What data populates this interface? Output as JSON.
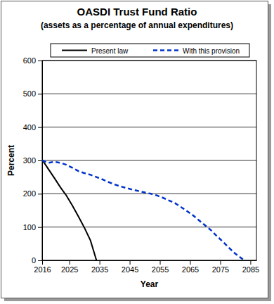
{
  "chart_data": {
    "type": "line",
    "title": "OASDI Trust Fund Ratio",
    "subtitle": "(assets as a percentage of annual expenditures)",
    "x_label": "Year",
    "y_label": "Percent",
    "legend": "top",
    "grid": true,
    "xlim": [
      2016,
      2087
    ],
    "xticks": [
      2016,
      2025,
      2035,
      2045,
      2055,
      2065,
      2075,
      2085
    ],
    "ylim": [
      0,
      600
    ],
    "yticks": [
      0,
      100,
      200,
      300,
      400,
      500,
      600
    ],
    "series": [
      {
        "name": "Present law",
        "color": "#000000",
        "line_style": "solid",
        "x": [
          2016,
          2018,
          2020,
          2022,
          2024,
          2026,
          2028,
          2030,
          2032,
          2034
        ],
        "values": [
          302,
          275,
          248,
          220,
          195,
          165,
          132,
          98,
          60,
          0
        ]
      },
      {
        "name": "With this provision",
        "color": "#0033cc",
        "line_style": "dashed",
        "x": [
          2016,
          2018,
          2020,
          2022,
          2024,
          2026,
          2028,
          2030,
          2032,
          2034,
          2036,
          2038,
          2040,
          2042,
          2044,
          2046,
          2048,
          2050,
          2052,
          2054,
          2056,
          2058,
          2060,
          2062,
          2064,
          2066,
          2068,
          2070,
          2072,
          2074,
          2076,
          2078,
          2080,
          2083
        ],
        "values": [
          300,
          293,
          296,
          293,
          287,
          278,
          268,
          262,
          257,
          250,
          243,
          235,
          228,
          222,
          217,
          212,
          208,
          204,
          200,
          195,
          188,
          180,
          172,
          160,
          148,
          135,
          120,
          105,
          90,
          72,
          55,
          37,
          20,
          0
        ]
      }
    ]
  }
}
